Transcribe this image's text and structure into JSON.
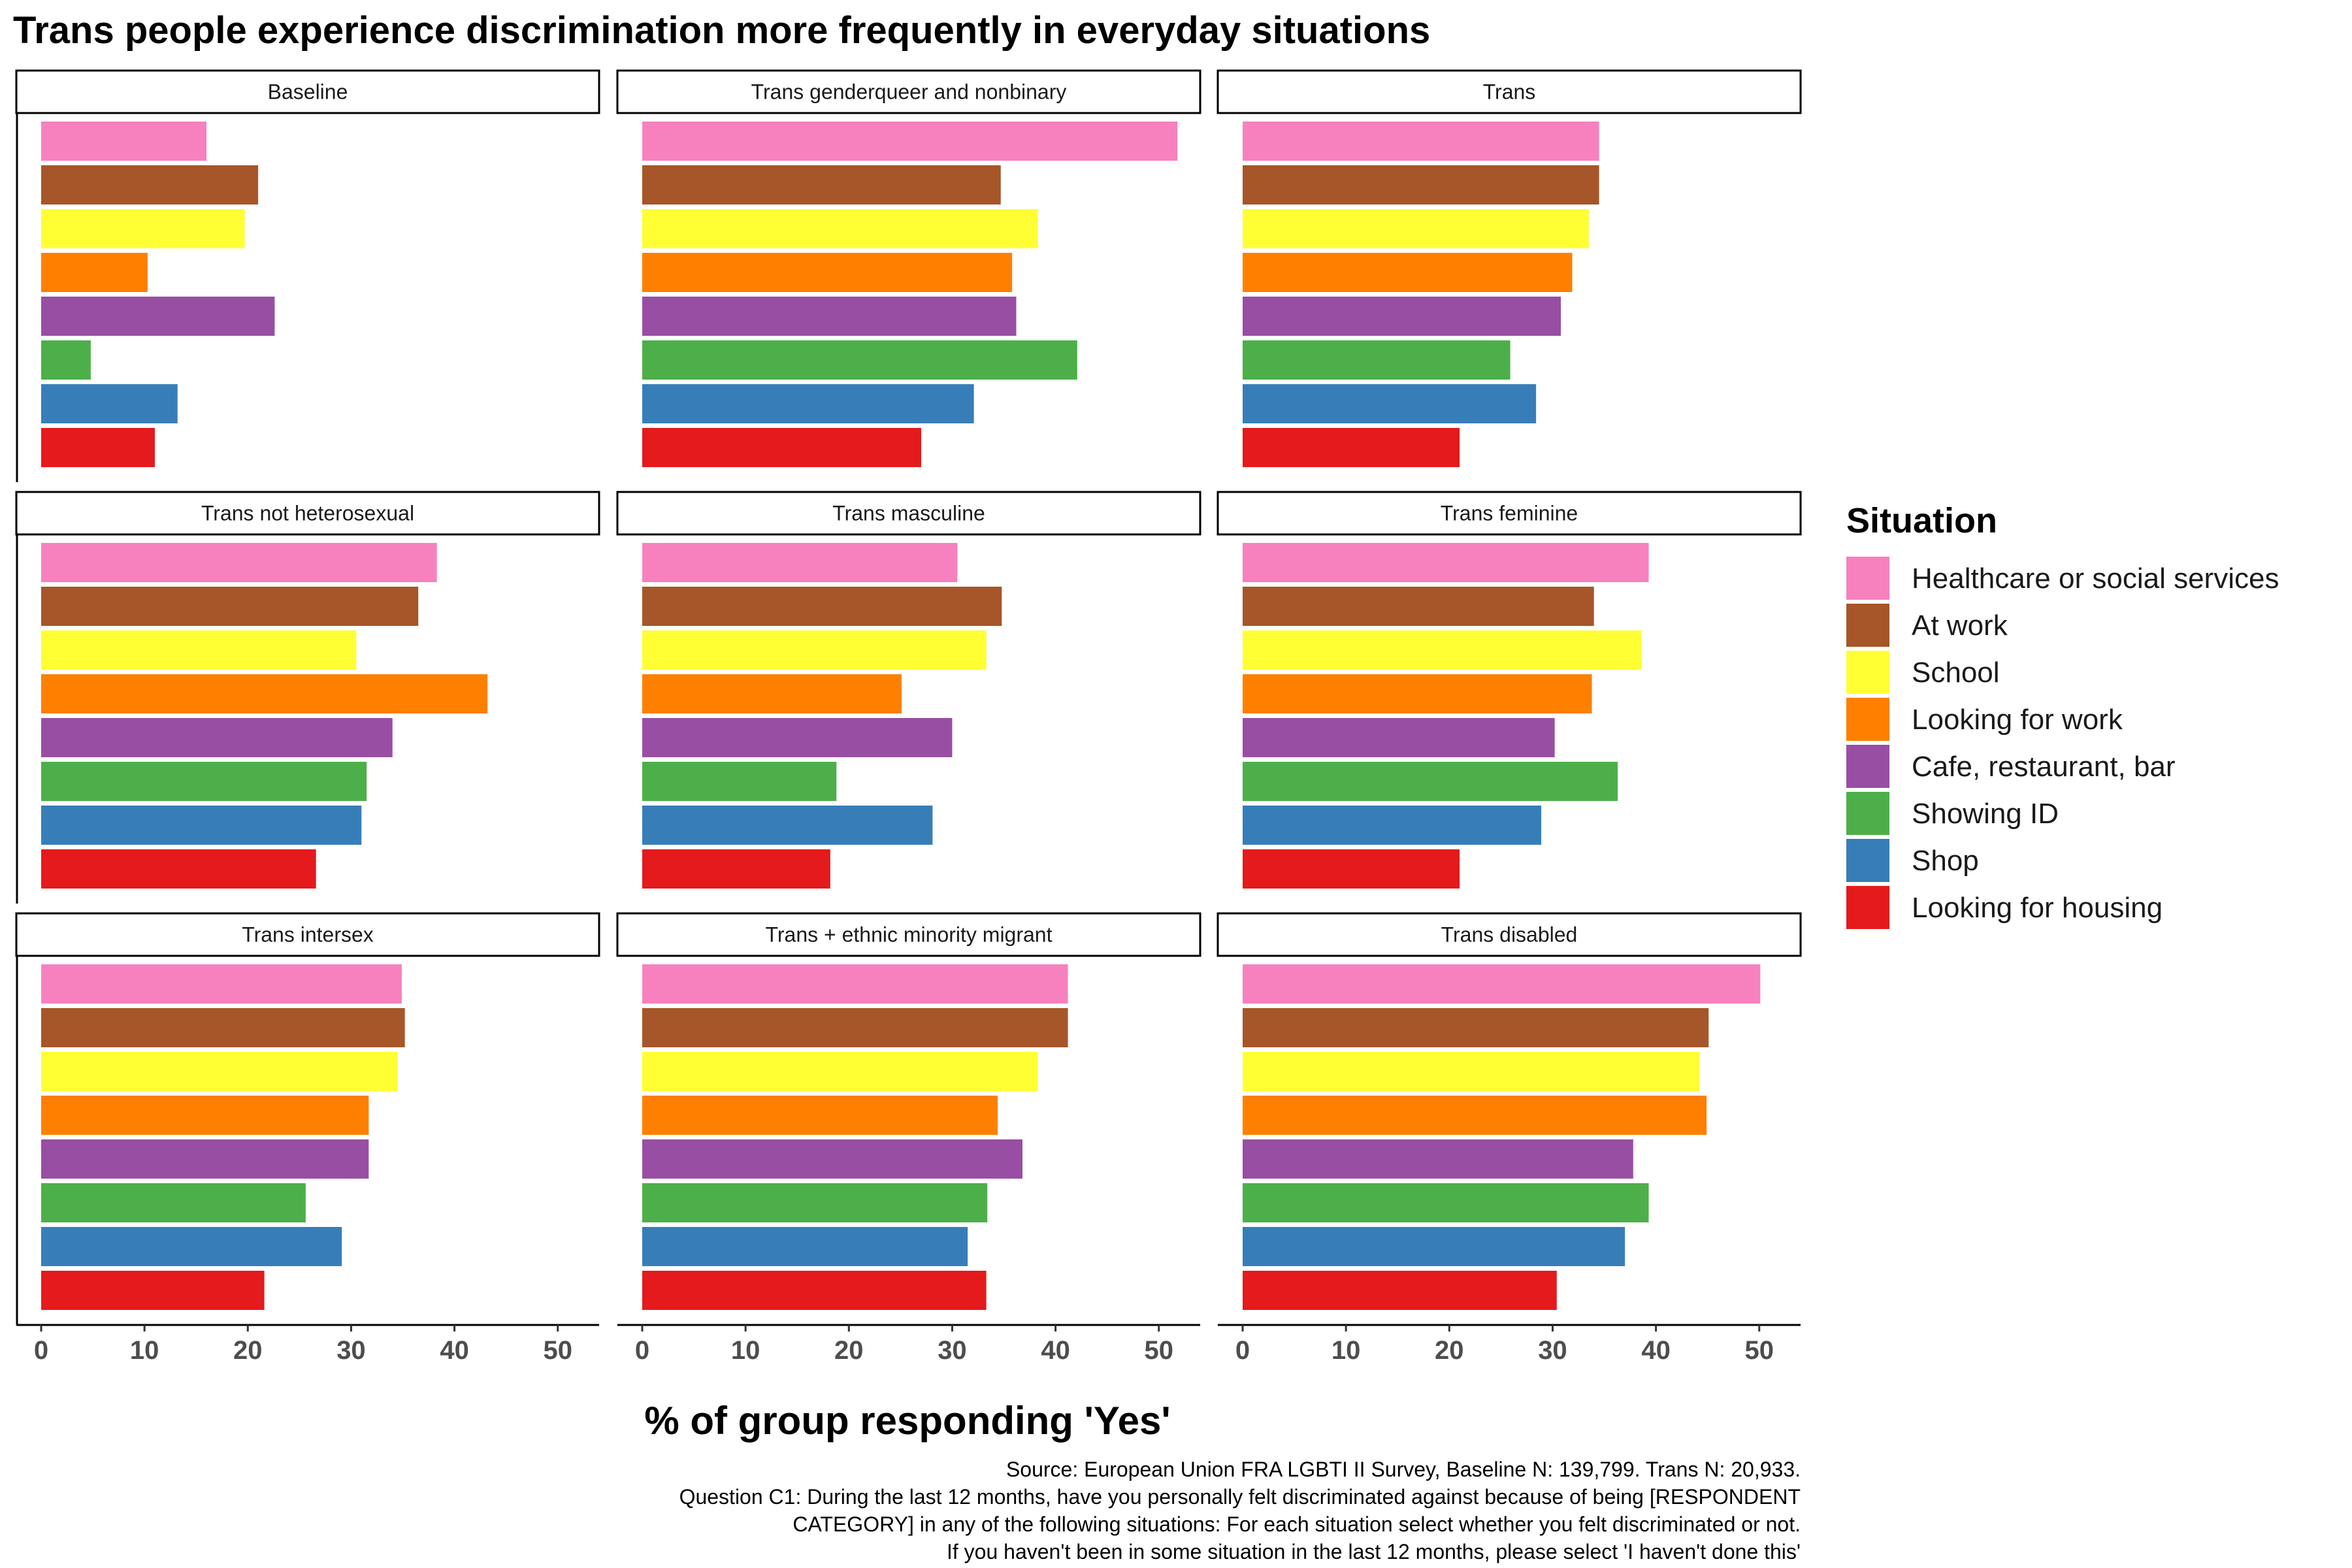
{
  "chart_data": {
    "type": "bar",
    "orientation": "horizontal",
    "facet_layout": "3x3 grid",
    "title": "Trans people experience discrimination more frequently in everyday situations",
    "xlabel": "% of group responding 'Yes'",
    "ylabel": "",
    "xlim": [
      0,
      54
    ],
    "x_ticks": [
      0,
      10,
      20,
      30,
      40,
      50
    ],
    "legend": {
      "title": "Situation",
      "position": "right",
      "entries": [
        {
          "name": "Healthcare or social services",
          "color": "#F781BF"
        },
        {
          "name": "At work",
          "color": "#A65628"
        },
        {
          "name": "School",
          "color": "#FFFF33"
        },
        {
          "name": "Looking for work",
          "color": "#FF7F00"
        },
        {
          "name": "Cafe, restaurant, bar",
          "color": "#984EA3"
        },
        {
          "name": "Showing ID",
          "color": "#4DAF4A"
        },
        {
          "name": "Shop",
          "color": "#377EB8"
        },
        {
          "name": "Looking for housing",
          "color": "#E41A1C"
        }
      ]
    },
    "categories": [
      "Healthcare or social services",
      "At work",
      "School",
      "Looking for work",
      "Cafe, restaurant, bar",
      "Showing ID",
      "Shop",
      "Looking for housing"
    ],
    "panels": [
      {
        "name": "Baseline",
        "values": [
          16,
          21,
          19.7,
          10.3,
          22.6,
          4.8,
          13.2,
          11
        ]
      },
      {
        "name": "Trans genderqueer and nonbinary",
        "values": [
          51.8,
          34.7,
          38.3,
          35.8,
          36.2,
          42.1,
          32.1,
          27
        ]
      },
      {
        "name": "Trans",
        "values": [
          34.5,
          34.5,
          33.5,
          31.9,
          30.8,
          25.9,
          28.4,
          21
        ]
      },
      {
        "name": "Trans not heterosexual",
        "values": [
          38.3,
          36.5,
          30.5,
          43.2,
          34,
          31.5,
          31,
          26.6
        ]
      },
      {
        "name": "Trans masculine",
        "values": [
          30.5,
          34.8,
          33.3,
          25.1,
          30,
          18.8,
          28.1,
          18.2
        ]
      },
      {
        "name": "Trans feminine",
        "values": [
          39.3,
          34,
          38.6,
          33.8,
          30.2,
          36.3,
          28.9,
          21
        ]
      },
      {
        "name": "Trans intersex",
        "values": [
          34.9,
          35.2,
          34.5,
          31.7,
          31.7,
          25.6,
          29.1,
          21.6
        ]
      },
      {
        "name": "Trans + ethnic minority migrant",
        "values": [
          41.2,
          41.2,
          38.3,
          34.4,
          36.8,
          33.4,
          31.5,
          33.3
        ]
      },
      {
        "name": "Trans disabled",
        "values": [
          50.1,
          45.1,
          44.2,
          44.9,
          37.8,
          39.3,
          37,
          30.4
        ]
      }
    ],
    "caption": [
      "Source: European Union FRA LGBTI II Survey, Baseline N: 139,799. Trans N: 20,933.",
      "Question C1: During the last 12 months, have you personally felt discriminated against because of being [RESPONDENT",
      "CATEGORY] in any of the following situations:  For each situation select whether you felt discriminated or not.",
      "If you haven't been in some situation in the last 12 months, please select 'I haven't done this'"
    ]
  }
}
